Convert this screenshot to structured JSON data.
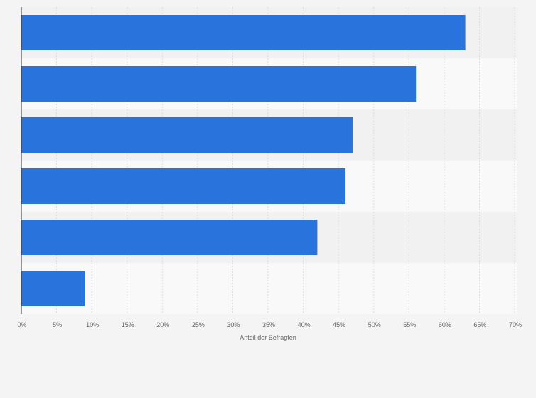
{
  "chart_data": {
    "type": "bar",
    "orientation": "horizontal",
    "categories": [
      "",
      "",
      "",
      "",
      "",
      ""
    ],
    "values": [
      63,
      56,
      47,
      46,
      42,
      9
    ],
    "xlabel": "Anteil der Befragten",
    "ylabel": "",
    "xlim": [
      0,
      70
    ],
    "xticks": [
      0,
      5,
      10,
      15,
      20,
      25,
      30,
      35,
      40,
      45,
      50,
      55,
      60,
      65,
      70
    ],
    "tick_suffix": "%",
    "grid": true,
    "bar_color": "#2874dc",
    "band_colors": [
      "#f1f1f1",
      "#f9f9f9"
    ]
  }
}
